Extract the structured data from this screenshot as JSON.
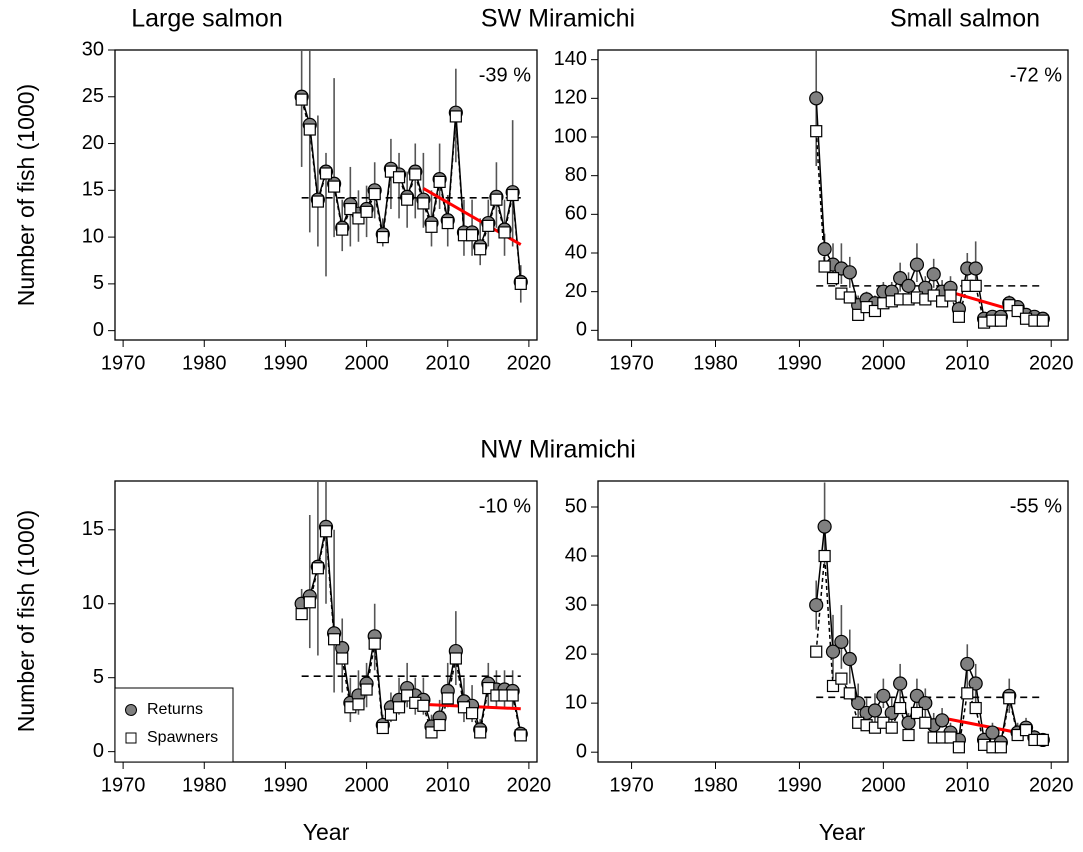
{
  "chart_data": [
    {
      "type": "scatter",
      "title": "Large salmon",
      "subtitle": "SW Miramichi",
      "ylabel": "Number of fish (1000)",
      "annotation": "-39 %",
      "xlim": [
        1969,
        2021
      ],
      "xticks": [
        1970,
        1980,
        1990,
        2000,
        2010,
        2020
      ],
      "ylim": [
        -1,
        30
      ],
      "yticks": [
        0,
        5,
        10,
        15,
        20,
        25,
        30
      ],
      "x": [
        1992,
        1993,
        1994,
        1995,
        1996,
        1997,
        1998,
        1999,
        2000,
        2001,
        2002,
        2003,
        2004,
        2005,
        2006,
        2007,
        2008,
        2009,
        2010,
        2011,
        2012,
        2013,
        2014,
        2015,
        2016,
        2017,
        2018,
        2019
      ],
      "series": [
        {
          "color": "#808080",
          "values": [
            25,
            22,
            14,
            17,
            15.7,
            11,
            13.5,
            12.5,
            13,
            15,
            10.3,
            17.3,
            16.7,
            14.3,
            17,
            14,
            11.5,
            16.2,
            11.8,
            23.3,
            10.5,
            10.5,
            9,
            11.5,
            14.3,
            10.8,
            14.8,
            5.2
          ],
          "lower": [
            17.5,
            10.5,
            9,
            5.8,
            10,
            8.5,
            9,
            9.5,
            10,
            12,
            9,
            13,
            12,
            11,
            12,
            11,
            9,
            13,
            9,
            18,
            8,
            8,
            7,
            9,
            11,
            8,
            9,
            3
          ],
          "upper": [
            30,
            30,
            23,
            19,
            27,
            14,
            17.5,
            15,
            15.5,
            18,
            12,
            20.5,
            19,
            17,
            20,
            19,
            15,
            20,
            14.5,
            28,
            14,
            14,
            12,
            14,
            18,
            14,
            22.5,
            7
          ]
        },
        {
          "color": "#ffffff",
          "values": [
            24.7,
            21.5,
            13.8,
            16.8,
            15.4,
            10.8,
            13,
            12,
            12.7,
            14.6,
            10,
            17,
            16.4,
            14,
            16.7,
            13.6,
            11.1,
            15.9,
            11.5,
            22.9,
            10.2,
            10.2,
            8.7,
            11.2,
            14,
            10.5,
            14.5,
            5
          ]
        }
      ],
      "mean": {
        "value": 14.2,
        "x": [
          1992,
          2019
        ]
      },
      "trend": {
        "color": "#ff0000",
        "x": [
          2007,
          2019
        ],
        "values": [
          15.2,
          9.2
        ]
      }
    },
    {
      "type": "scatter",
      "title": "Small salmon",
      "annotation": "-72 %",
      "xlim": [
        1966,
        2022
      ],
      "xticks": [
        1970,
        1980,
        1990,
        2000,
        2010,
        2020
      ],
      "ylim": [
        -5,
        145
      ],
      "yticks": [
        0,
        20,
        40,
        60,
        80,
        100,
        120,
        140
      ],
      "x": [
        1992,
        1993,
        1994,
        1995,
        1996,
        1997,
        1998,
        1999,
        2000,
        2001,
        2002,
        2003,
        2004,
        2005,
        2006,
        2007,
        2008,
        2009,
        2010,
        2011,
        2012,
        2013,
        2014,
        2015,
        2016,
        2017,
        2018,
        2019
      ],
      "series": [
        {
          "color": "#808080",
          "values": [
            120,
            42,
            34,
            32,
            30,
            13,
            16,
            14,
            20,
            20,
            27,
            23,
            34,
            22,
            29,
            20,
            22,
            11,
            32,
            32,
            6,
            7,
            7,
            14,
            12,
            8,
            7,
            6
          ],
          "lower": [
            85,
            35,
            25,
            24,
            22,
            10,
            12,
            10,
            15,
            15,
            20,
            18,
            25,
            17,
            22,
            15,
            17,
            8,
            24,
            24,
            4,
            5,
            5,
            11,
            9,
            6,
            5,
            4
          ],
          "upper": [
            145,
            50,
            45,
            45,
            38,
            18,
            20,
            18,
            25,
            25,
            35,
            30,
            45,
            28,
            37,
            26,
            28,
            15,
            40,
            46,
            9,
            10,
            10,
            18,
            15,
            11,
            10,
            8
          ]
        },
        {
          "color": "#ffffff",
          "values": [
            103,
            33,
            27,
            19,
            17,
            8,
            12,
            10,
            14,
            15,
            16,
            16,
            17,
            16,
            18,
            15,
            18,
            7,
            23,
            23,
            4,
            5,
            5,
            13,
            10,
            6,
            5,
            5
          ]
        }
      ],
      "mean": {
        "value": 23,
        "x": [
          1992,
          2019
        ]
      },
      "trend": {
        "color": "#ff0000",
        "x": [
          2007,
          2019
        ],
        "values": [
          21,
          6
        ]
      }
    },
    {
      "type": "scatter",
      "subtitle": "NW Miramichi",
      "ylabel": "Number of fish (1000)",
      "xlabel": "Year",
      "annotation": "-10 %",
      "legend": "bottom-left",
      "xlim": [
        1969,
        2021
      ],
      "xticks": [
        1970,
        1980,
        1990,
        2000,
        2010,
        2020
      ],
      "ylim": [
        -0.7,
        18.3
      ],
      "yticks": [
        0,
        5,
        10,
        15
      ],
      "x": [
        1992,
        1993,
        1994,
        1995,
        1996,
        1997,
        1998,
        1999,
        2000,
        2001,
        2002,
        2003,
        2004,
        2005,
        2006,
        2007,
        2008,
        2009,
        2010,
        2011,
        2012,
        2013,
        2014,
        2015,
        2016,
        2017,
        2018,
        2019
      ],
      "series": [
        {
          "name": "Returns",
          "color": "#808080",
          "values": [
            10,
            10.5,
            12.5,
            15.2,
            8,
            7,
            3.3,
            3.8,
            4.6,
            7.8,
            1.8,
            3,
            3.5,
            4.3,
            3.8,
            3.5,
            1.7,
            2.3,
            4.1,
            6.8,
            3.4,
            3.1,
            1.5,
            4.6,
            4.2,
            4.2,
            4.1,
            1.2
          ],
          "lower": [
            9,
            7,
            6.5,
            10,
            4,
            4,
            2,
            2.5,
            3,
            5.5,
            1.2,
            2,
            2.5,
            3,
            2.5,
            2.5,
            1,
            1.5,
            3,
            4.5,
            2,
            2,
            1,
            3,
            3,
            3,
            3,
            0.8
          ],
          "upper": [
            11,
            16,
            18.3,
            18.3,
            15,
            9,
            5,
            5.5,
            6,
            10,
            2.5,
            4,
            5,
            6,
            5,
            5,
            2.5,
            3.5,
            6,
            9.5,
            5,
            4.5,
            2.2,
            6,
            5.5,
            5.5,
            5.5,
            1.7
          ]
        },
        {
          "name": "Spawners",
          "color": "#ffffff",
          "values": [
            9.3,
            10.1,
            12.4,
            14.9,
            7.6,
            6.3,
            3,
            3.2,
            4.2,
            7.3,
            1.6,
            2.5,
            3,
            3.8,
            3.3,
            3.1,
            1.3,
            1.8,
            3.6,
            6.3,
            3,
            2.6,
            1.3,
            4.3,
            3.8,
            3.8,
            3.8,
            1.1
          ]
        }
      ],
      "mean": {
        "value": 5.1,
        "x": [
          1992,
          2019
        ]
      },
      "trend": {
        "color": "#ff0000",
        "x": [
          2007,
          2019
        ],
        "values": [
          3.2,
          2.9
        ]
      }
    },
    {
      "type": "scatter",
      "xlabel": "Year",
      "annotation": "-55 %",
      "xlim": [
        1966,
        2022
      ],
      "xticks": [
        1970,
        1980,
        1990,
        2000,
        2010,
        2020
      ],
      "ylim": [
        -2,
        55.3
      ],
      "yticks": [
        0,
        10,
        20,
        30,
        40,
        50
      ],
      "x": [
        1992,
        1993,
        1994,
        1995,
        1996,
        1997,
        1998,
        1999,
        2000,
        2001,
        2002,
        2003,
        2004,
        2005,
        2006,
        2007,
        2008,
        2009,
        2010,
        2011,
        2012,
        2013,
        2014,
        2015,
        2016,
        2017,
        2018,
        2019
      ],
      "series": [
        {
          "color": "#808080",
          "values": [
            30,
            46,
            20.5,
            22.5,
            19,
            10,
            8,
            8.5,
            11.5,
            8,
            14,
            6,
            11.5,
            10,
            5.5,
            6.5,
            4,
            2.5,
            18,
            14,
            2.5,
            4,
            2,
            11.5,
            4,
            5,
            3,
            2.5
          ],
          "lower": [
            25,
            38,
            15,
            17,
            14,
            7,
            6,
            6,
            9,
            6,
            10,
            4,
            8,
            7,
            4,
            5,
            3,
            1.5,
            13,
            10,
            1.5,
            3,
            1.5,
            8,
            3,
            3.5,
            2,
            2
          ],
          "upper": [
            35,
            55,
            28,
            30,
            25,
            14,
            11,
            12,
            15,
            11,
            18,
            8,
            15,
            13,
            8,
            9,
            6,
            4,
            22,
            18,
            4,
            6,
            3,
            15,
            6,
            7,
            4.5,
            3.5
          ]
        },
        {
          "color": "#ffffff",
          "values": [
            20.5,
            40,
            13.5,
            15,
            12,
            6,
            5.5,
            5,
            6,
            5,
            9,
            3.5,
            8,
            6,
            3,
            3,
            3,
            1,
            12,
            9,
            1.5,
            1,
            1,
            11,
            3.5,
            4.5,
            2.5,
            2.5
          ]
        }
      ],
      "mean": {
        "value": 11.2,
        "x": [
          1992,
          2019
        ]
      },
      "trend": {
        "color": "#ff0000",
        "x": [
          2007,
          2019
        ],
        "values": [
          7,
          3
        ]
      }
    }
  ]
}
